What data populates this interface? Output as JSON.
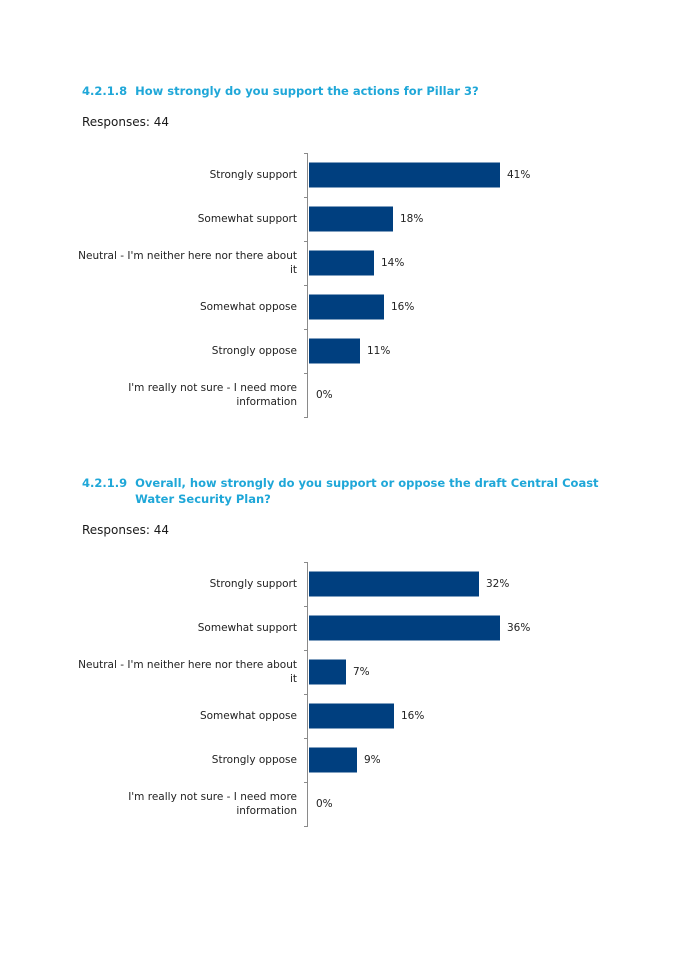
{
  "colors": {
    "heading": "#1fa7d8",
    "bar": "#003f7f"
  },
  "charts": [
    {
      "number": "4.2.1.8",
      "question": "How strongly do you support the actions for Pillar 3?",
      "responses": "Responses: 44"
    },
    {
      "number": "4.2.1.9",
      "question": "Overall, how strongly do you support or oppose the draft Central Coast Water Security Plan?",
      "responses": "Responses: 44"
    }
  ],
  "chart_data": [
    {
      "type": "bar",
      "orientation": "horizontal",
      "categories": [
        "Strongly support",
        "Somewhat support",
        "Neutral - I'm neither here nor there about it",
        "Somewhat oppose",
        "Strongly oppose",
        "I'm really not sure - I need more information"
      ],
      "values": [
        41,
        18,
        14,
        16,
        11,
        0
      ],
      "value_labels": [
        "41%",
        "18%",
        "14%",
        "16%",
        "11%",
        "0%"
      ],
      "xlim": [
        0,
        41
      ],
      "grid": false,
      "legend": "none"
    },
    {
      "type": "bar",
      "orientation": "horizontal",
      "categories": [
        "Strongly support",
        "Somewhat support",
        "Neutral - I'm neither here nor there about it",
        "Somewhat oppose",
        "Strongly oppose",
        "I'm really not sure - I need more information"
      ],
      "values": [
        32,
        36,
        7,
        16,
        9,
        0
      ],
      "value_labels": [
        "32%",
        "36%",
        "7%",
        "16%",
        "9%",
        "0%"
      ],
      "xlim": [
        0,
        36
      ],
      "grid": false,
      "legend": "none"
    }
  ]
}
